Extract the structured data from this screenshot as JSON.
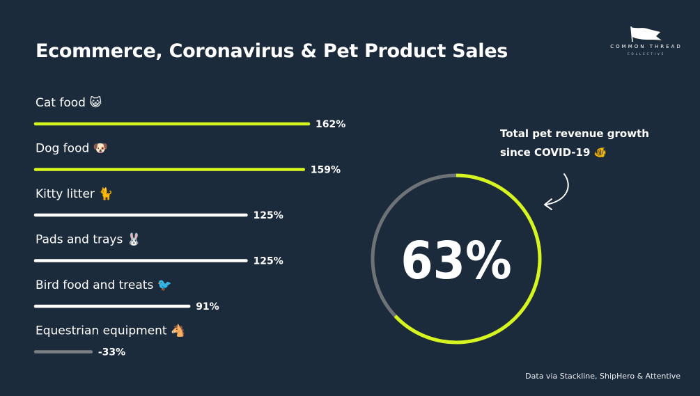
{
  "title": "Ecommerce, Coronavirus & Pet Product Sales",
  "logo": {
    "wordmark": "COMMON THREAD",
    "subline": "COLLECTIVE",
    "icon": "flag-icon"
  },
  "ring": {
    "value_label": "63%",
    "value": 63,
    "caption_line1": "Total pet revenue growth",
    "caption_line2": "since COVID-19 🐠",
    "accent_color": "#d6f51f",
    "track_color": "#6e7377"
  },
  "source": "Data via Stackline, ShipHero & Attentive",
  "colors": {
    "background": "#1c2b3b",
    "highlight": "#d6f51f",
    "normal": "#ffffff",
    "negative": "#7c8084"
  },
  "chart_data": {
    "type": "bar",
    "orientation": "horizontal",
    "title": "Ecommerce, Coronavirus & Pet Product Sales",
    "categories": [
      "Cat food 😺",
      "Dog food 🐶",
      "Kitty litter 🐈",
      "Pads and trays 🐰",
      "Bird food and treats 🐦",
      "Equestrian equipment 🐴"
    ],
    "values": [
      162,
      159,
      125,
      125,
      91,
      -33
    ],
    "value_labels": [
      "162%",
      "159%",
      "125%",
      "125%",
      "91%",
      "-33%"
    ],
    "highlight": [
      true,
      true,
      false,
      false,
      false,
      false
    ],
    "unit": "%",
    "grid": false,
    "legend": "none"
  }
}
